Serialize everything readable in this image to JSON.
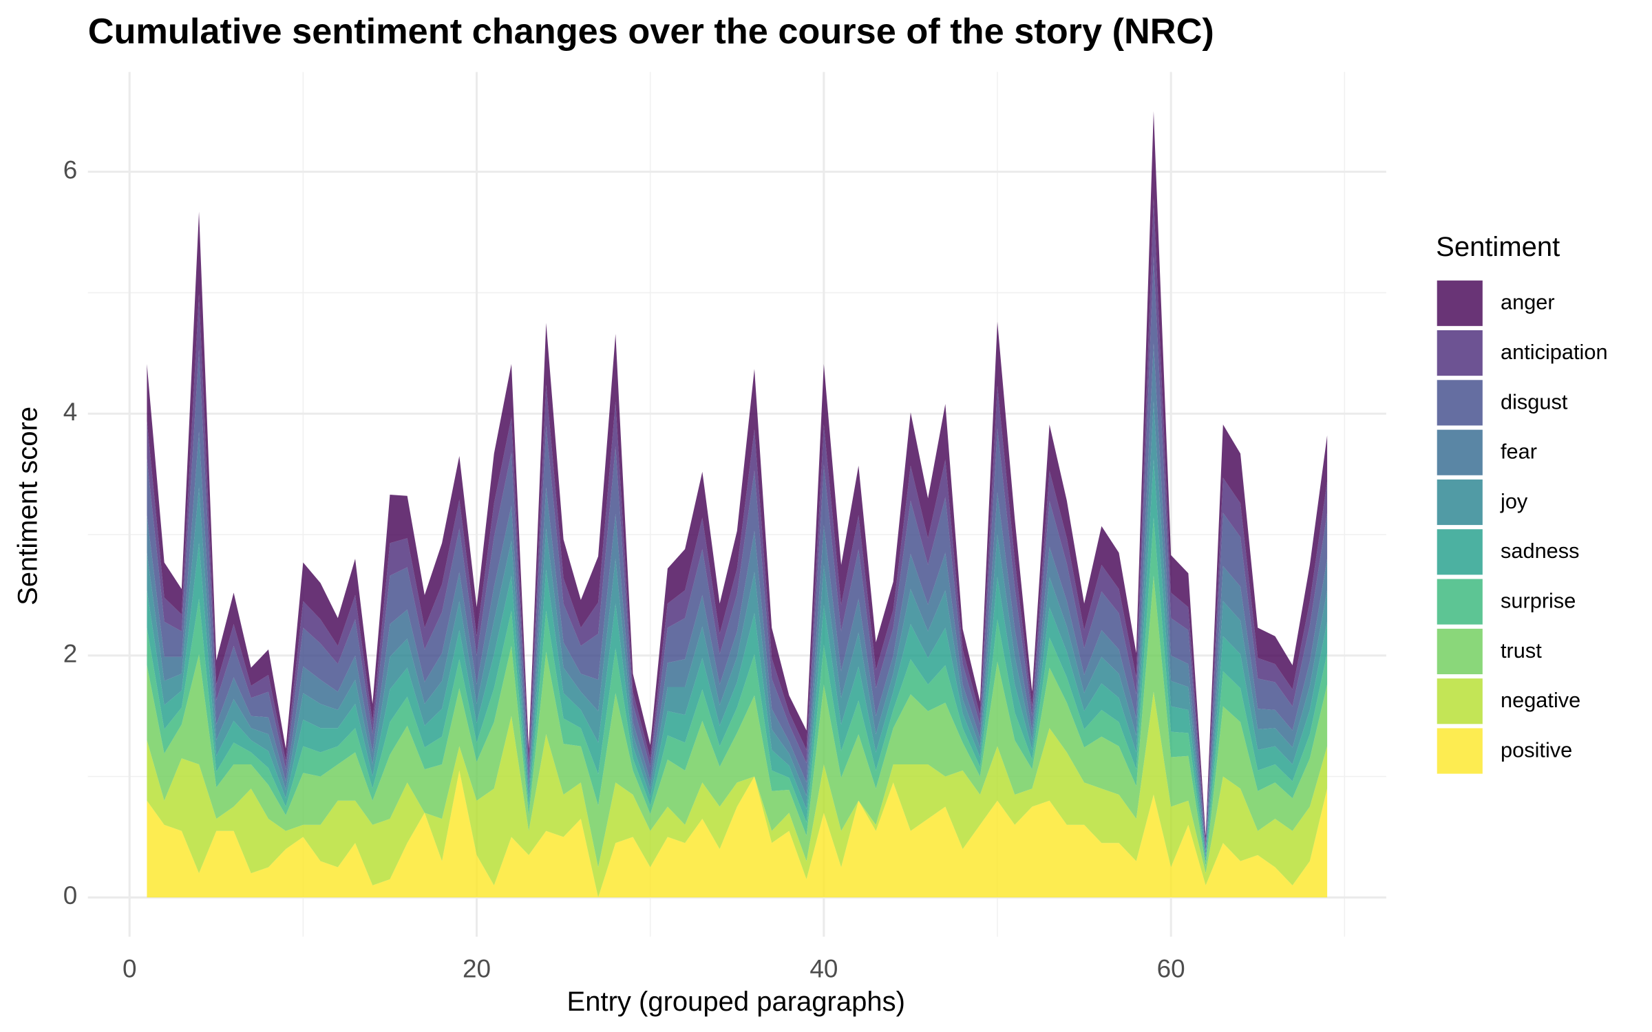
{
  "chart_data": {
    "type": "stacked-area",
    "title": "Cumulative sentiment changes over the course of the story (NRC)",
    "x_label": "Entry (grouped paragraphs)",
    "y_label": "Sentiment score",
    "legend_title": "Sentiment",
    "legend": "right",
    "grid": true,
    "alpha": 0.8,
    "xlim": [
      -2.4,
      72.4
    ],
    "ylim": [
      -0.325,
      6.825
    ],
    "xticks": [
      0,
      20,
      40,
      60
    ],
    "yticks": [
      0,
      2,
      4,
      6
    ],
    "xminor": [
      10,
      30,
      50,
      70
    ],
    "yminor": [
      1,
      3,
      5
    ],
    "x": [
      1,
      2,
      3,
      4,
      5,
      6,
      7,
      8,
      9,
      10,
      11,
      12,
      13,
      14,
      15,
      16,
      17,
      18,
      19,
      20,
      21,
      22,
      23,
      24,
      25,
      26,
      27,
      28,
      29,
      30,
      31,
      32,
      33,
      34,
      35,
      36,
      37,
      38,
      39,
      40,
      41,
      42,
      43,
      44,
      45,
      46,
      47,
      48,
      49,
      50,
      51,
      52,
      53,
      54,
      55,
      56,
      57,
      58,
      59,
      60,
      61,
      62,
      63,
      64,
      65,
      66,
      67,
      68,
      69
    ],
    "series": [
      {
        "name": "anger",
        "color": "#440154",
        "values": [
          0.47,
          0.29,
          0.21,
          0.68,
          0.2,
          0.26,
          0.15,
          0.21,
          0.1,
          0.32,
          0.3,
          0.23,
          0.3,
          0.15,
          0.4,
          0.35,
          0.27,
          0.34,
          0.36,
          0.24,
          0.41,
          0.44,
          0.1,
          0.51,
          0.32,
          0.23,
          0.38,
          0.56,
          0.15,
          0.11,
          0.29,
          0.34,
          0.38,
          0.25,
          0.31,
          0.5,
          0.25,
          0.14,
          0.16,
          0.5,
          0.33,
          0.41,
          0.23,
          0.23,
          0.44,
          0.33,
          0.46,
          0.17,
          0.11,
          0.53,
          0.34,
          0.12,
          0.38,
          0.31,
          0.22,
          0.32,
          0.3,
          0.2,
          0.72,
          0.31,
          0.28,
          0.05,
          0.44,
          0.41,
          0.25,
          0.23,
          0.2,
          0.3,
          0.38
        ]
      },
      {
        "name": "anticipation",
        "color": "#482878",
        "values": [
          0.31,
          0.2,
          0.14,
          0.46,
          0.13,
          0.18,
          0.1,
          0.14,
          0.07,
          0.22,
          0.2,
          0.15,
          0.2,
          0.1,
          0.27,
          0.24,
          0.18,
          0.23,
          0.24,
          0.16,
          0.28,
          0.29,
          0.07,
          0.34,
          0.21,
          0.15,
          0.26,
          0.37,
          0.1,
          0.07,
          0.2,
          0.23,
          0.26,
          0.17,
          0.21,
          0.34,
          0.17,
          0.1,
          0.11,
          0.33,
          0.22,
          0.28,
          0.15,
          0.15,
          0.29,
          0.22,
          0.31,
          0.12,
          0.08,
          0.35,
          0.23,
          0.08,
          0.25,
          0.21,
          0.15,
          0.22,
          0.2,
          0.14,
          0.48,
          0.21,
          0.19,
          0.03,
          0.29,
          0.28,
          0.17,
          0.15,
          0.14,
          0.2,
          0.26
        ]
      },
      {
        "name": "disgust",
        "color": "#3E4A89",
        "values": [
          0.47,
          0.29,
          0.21,
          0.68,
          0.2,
          0.26,
          0.15,
          0.21,
          0.1,
          0.32,
          0.3,
          0.23,
          0.3,
          0.15,
          0.4,
          0.35,
          0.27,
          0.34,
          0.36,
          0.24,
          0.41,
          0.44,
          0.1,
          0.51,
          0.32,
          0.23,
          0.38,
          0.56,
          0.15,
          0.11,
          0.29,
          0.34,
          0.38,
          0.25,
          0.31,
          0.5,
          0.25,
          0.14,
          0.16,
          0.5,
          0.33,
          0.41,
          0.23,
          0.23,
          0.44,
          0.33,
          0.46,
          0.17,
          0.11,
          0.53,
          0.34,
          0.12,
          0.38,
          0.31,
          0.22,
          0.32,
          0.3,
          0.2,
          0.72,
          0.31,
          0.28,
          0.05,
          0.44,
          0.41,
          0.25,
          0.23,
          0.2,
          0.3,
          0.38
        ]
      },
      {
        "name": "fear",
        "color": "#31688E",
        "values": [
          0.31,
          0.2,
          0.14,
          0.46,
          0.13,
          0.18,
          0.1,
          0.14,
          0.07,
          0.22,
          0.2,
          0.15,
          0.2,
          0.1,
          0.27,
          0.24,
          0.18,
          0.23,
          0.24,
          0.16,
          0.28,
          0.29,
          0.07,
          0.34,
          0.21,
          0.15,
          0.26,
          0.37,
          0.1,
          0.07,
          0.2,
          0.23,
          0.26,
          0.17,
          0.21,
          0.34,
          0.17,
          0.1,
          0.11,
          0.33,
          0.22,
          0.28,
          0.15,
          0.15,
          0.29,
          0.22,
          0.31,
          0.12,
          0.08,
          0.35,
          0.23,
          0.08,
          0.25,
          0.21,
          0.15,
          0.22,
          0.2,
          0.14,
          0.48,
          0.21,
          0.19,
          0.03,
          0.29,
          0.28,
          0.17,
          0.15,
          0.14,
          0.2,
          0.26
        ]
      },
      {
        "name": "joy",
        "color": "#26828E",
        "values": [
          0.31,
          0.2,
          0.14,
          0.46,
          0.13,
          0.18,
          0.1,
          0.14,
          0.07,
          0.22,
          0.2,
          0.15,
          0.2,
          0.1,
          0.27,
          0.24,
          0.18,
          0.23,
          0.24,
          0.16,
          0.28,
          0.29,
          0.07,
          0.34,
          0.21,
          0.15,
          0.26,
          0.37,
          0.1,
          0.07,
          0.2,
          0.23,
          0.26,
          0.17,
          0.21,
          0.34,
          0.17,
          0.1,
          0.11,
          0.33,
          0.22,
          0.28,
          0.15,
          0.15,
          0.29,
          0.22,
          0.31,
          0.12,
          0.08,
          0.35,
          0.23,
          0.08,
          0.25,
          0.21,
          0.15,
          0.22,
          0.2,
          0.14,
          0.48,
          0.21,
          0.19,
          0.03,
          0.29,
          0.28,
          0.17,
          0.15,
          0.14,
          0.2,
          0.26
        ]
      },
      {
        "name": "sadness",
        "color": "#1F9E89",
        "values": [
          0.31,
          0.2,
          0.14,
          0.46,
          0.13,
          0.18,
          0.1,
          0.14,
          0.07,
          0.22,
          0.2,
          0.15,
          0.2,
          0.1,
          0.27,
          0.24,
          0.18,
          0.23,
          0.24,
          0.16,
          0.28,
          0.29,
          0.07,
          0.34,
          0.21,
          0.15,
          0.26,
          0.37,
          0.1,
          0.07,
          0.2,
          0.23,
          0.26,
          0.17,
          0.21,
          0.34,
          0.17,
          0.1,
          0.11,
          0.33,
          0.22,
          0.28,
          0.15,
          0.15,
          0.29,
          0.22,
          0.31,
          0.12,
          0.08,
          0.35,
          0.23,
          0.08,
          0.25,
          0.21,
          0.15,
          0.22,
          0.2,
          0.14,
          0.48,
          0.21,
          0.19,
          0.03,
          0.29,
          0.28,
          0.17,
          0.15,
          0.14,
          0.2,
          0.26
        ]
      },
      {
        "name": "surprise",
        "color": "#35B779",
        "values": [
          0.31,
          0.2,
          0.14,
          0.46,
          0.13,
          0.18,
          0.1,
          0.14,
          0.07,
          0.22,
          0.2,
          0.15,
          0.2,
          0.1,
          0.27,
          0.24,
          0.18,
          0.23,
          0.24,
          0.16,
          0.28,
          0.29,
          0.07,
          0.34,
          0.21,
          0.15,
          0.26,
          0.37,
          0.1,
          0.07,
          0.2,
          0.23,
          0.26,
          0.17,
          0.21,
          0.34,
          0.17,
          0.1,
          0.11,
          0.33,
          0.22,
          0.28,
          0.15,
          0.15,
          0.29,
          0.22,
          0.31,
          0.12,
          0.08,
          0.35,
          0.23,
          0.08,
          0.25,
          0.21,
          0.15,
          0.22,
          0.2,
          0.14,
          0.48,
          0.21,
          0.19,
          0.03,
          0.29,
          0.28,
          0.17,
          0.15,
          0.14,
          0.2,
          0.26
        ]
      },
      {
        "name": "trust",
        "color": "#6DCD59",
        "values": [
          0.62,
          0.39,
          0.28,
          0.91,
          0.26,
          0.35,
          0.2,
          0.28,
          0.13,
          0.43,
          0.4,
          0.3,
          0.4,
          0.2,
          0.53,
          0.47,
          0.36,
          0.45,
          0.48,
          0.32,
          0.55,
          0.58,
          0.13,
          0.68,
          0.42,
          0.3,
          0.51,
          0.74,
          0.2,
          0.14,
          0.39,
          0.45,
          0.51,
          0.33,
          0.41,
          0.67,
          0.33,
          0.19,
          0.21,
          0.66,
          0.44,
          0.55,
          0.3,
          0.3,
          0.58,
          0.44,
          0.61,
          0.23,
          0.15,
          0.7,
          0.45,
          0.16,
          0.5,
          0.41,
          0.29,
          0.43,
          0.4,
          0.27,
          0.96,
          0.41,
          0.37,
          0.06,
          0.58,
          0.55,
          0.33,
          0.3,
          0.27,
          0.4,
          0.51
        ]
      },
      {
        "name": "negative",
        "color": "#B4DE2C",
        "values": [
          0.5,
          0.2,
          0.6,
          0.9,
          0.1,
          0.2,
          0.7,
          0.4,
          0.15,
          0.1,
          0.3,
          0.55,
          0.35,
          0.5,
          0.5,
          0.5,
          0,
          0.35,
          0.2,
          0.45,
          0.8,
          1.0,
          0.2,
          0.8,
          0.35,
          0.3,
          0.25,
          0.5,
          0.35,
          0.3,
          0.25,
          0.15,
          0.3,
          0.35,
          0.2,
          0,
          0.1,
          0.15,
          0.15,
          0.4,
          0.3,
          0,
          0.05,
          0.15,
          0.55,
          0.45,
          0.25,
          0.65,
          0.25,
          0.45,
          0.25,
          0.15,
          0.6,
          0.6,
          0.35,
          0.45,
          0.4,
          0.35,
          0.85,
          0.5,
          0.2,
          0.1,
          0.55,
          0.6,
          0.2,
          0.4,
          0.45,
          0.45,
          0.35
        ]
      },
      {
        "name": "positive",
        "color": "#FDE725",
        "values": [
          0.8,
          0.6,
          0.55,
          0.2,
          0.55,
          0.55,
          0.2,
          0.25,
          0.4,
          0.5,
          0.3,
          0.25,
          0.45,
          0.1,
          0.15,
          0.45,
          0.7,
          0.3,
          1.05,
          0.35,
          0.1,
          0.5,
          0.35,
          0.55,
          0.5,
          0.65,
          0,
          0.45,
          0.5,
          0.25,
          0.5,
          0.45,
          0.65,
          0.4,
          0.75,
          1.0,
          0.45,
          0.55,
          0.15,
          0.7,
          0.25,
          0.8,
          0.55,
          0.95,
          0.55,
          0.65,
          0.75,
          0.4,
          0.6,
          0.8,
          0.6,
          0.75,
          0.8,
          0.6,
          0.6,
          0.45,
          0.45,
          0.3,
          0.85,
          0.25,
          0.6,
          0.1,
          0.45,
          0.3,
          0.35,
          0.25,
          0.1,
          0.3,
          0.9
        ]
      }
    ]
  }
}
